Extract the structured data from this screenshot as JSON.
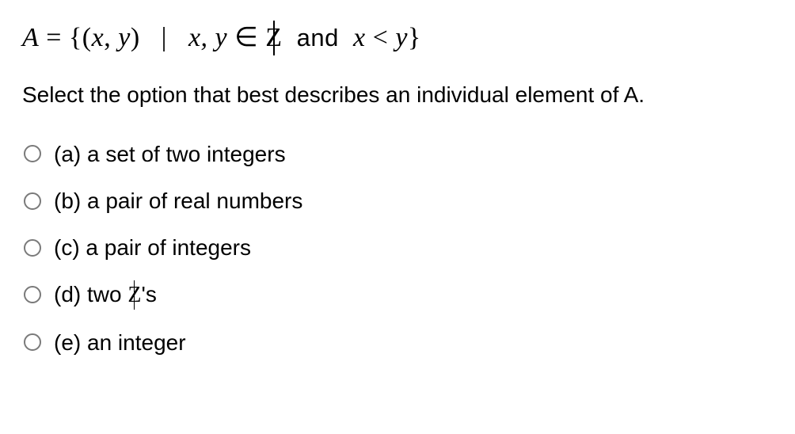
{
  "expression": {
    "lhs": "A",
    "eq": "=",
    "open": "{",
    "pair_open": "(",
    "x": "x",
    "comma1": ",",
    "y": "y",
    "pair_close": ")",
    "bar": "|",
    "xy": "x, y",
    "in": "∈",
    "Z": "Z",
    "and": "and",
    "x2": "x",
    "lt": "<",
    "y2": "y",
    "close": "}"
  },
  "prompt": "Select the option that best describes an individual element of A.",
  "options": [
    {
      "label": "(a) a set of two integers",
      "has_z": false
    },
    {
      "label": "(b) a pair of real numbers",
      "has_z": false
    },
    {
      "label": "(c) a pair of integers",
      "has_z": false
    },
    {
      "prefix": "(d) two ",
      "z": "Z",
      "suffix": "'s",
      "has_z": true
    },
    {
      "label": "(e) an integer",
      "has_z": false
    }
  ],
  "colors": {
    "text": "#000000",
    "radio_border": "#7a7a7a",
    "background": "#ffffff"
  }
}
